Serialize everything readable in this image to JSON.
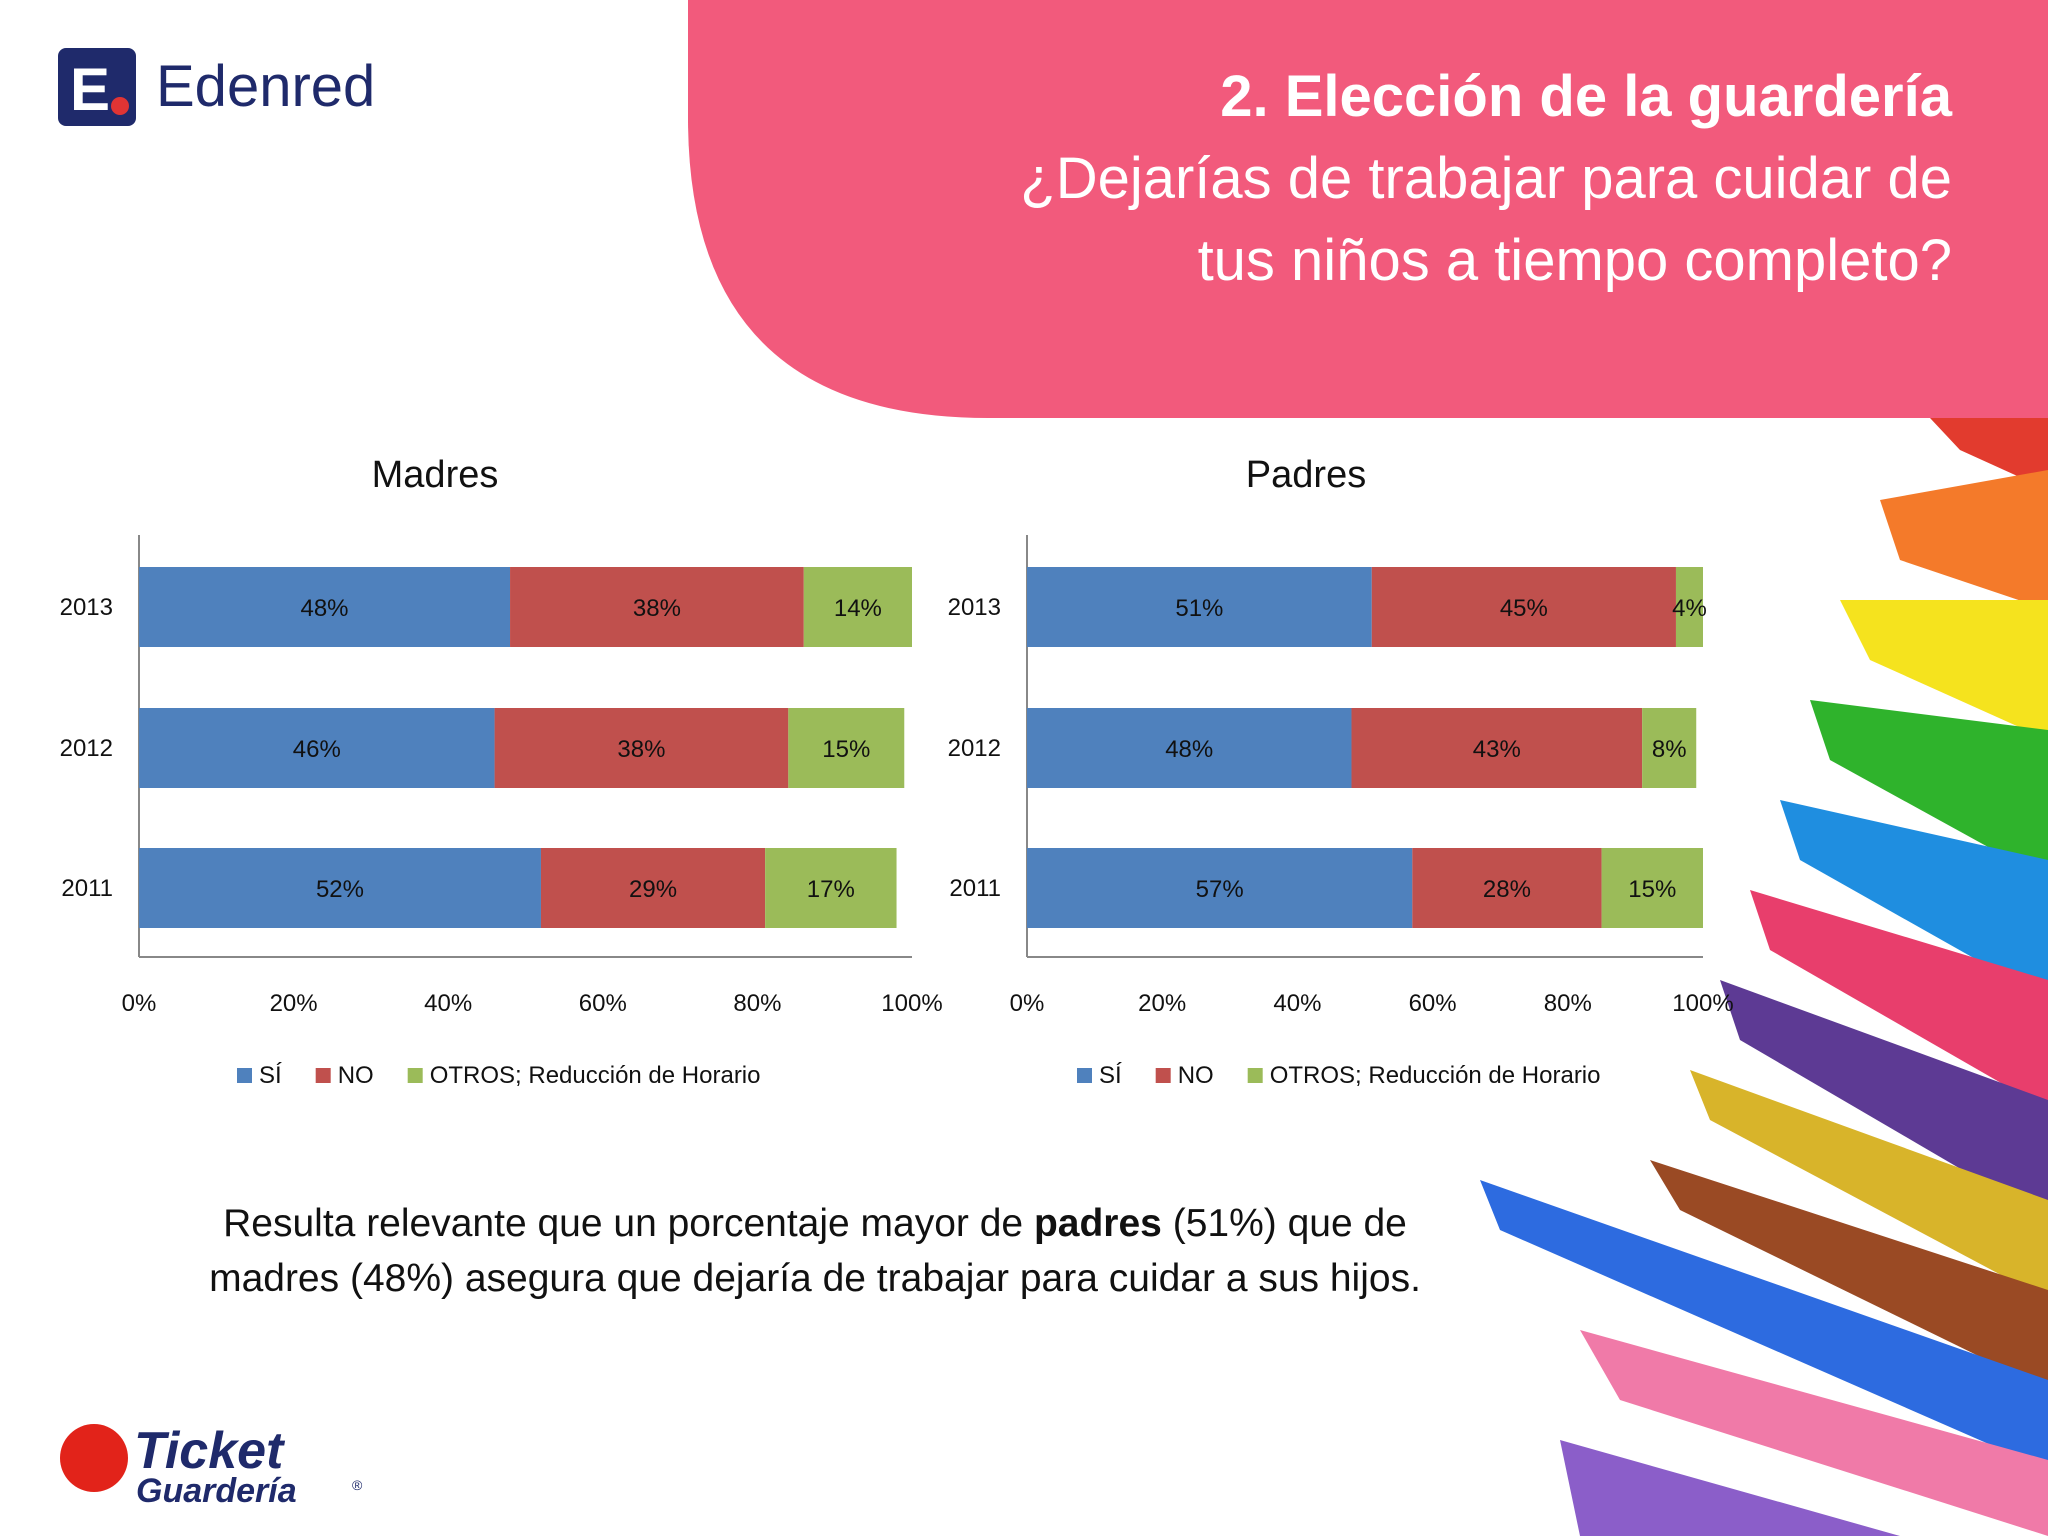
{
  "brand": {
    "name": "Edenred",
    "bottom_logo_line1": "Ticket",
    "bottom_logo_line2": "Guardería",
    "bottom_logo_mark": "®"
  },
  "header": {
    "title": "2. Elección de la guardería",
    "subtitle_line1": "¿Dejarías de trabajar para cuidar de",
    "subtitle_line2": "tus niños a tiempo completo?",
    "accent_color": "#f25a7c"
  },
  "summary": {
    "before": "Resulta relevante que un porcentaje mayor de ",
    "bold": "padres",
    "after": " (51%) que de madres (48%) asegura que dejaría de trabajar para cuidar a sus hijos."
  },
  "chart_data": [
    {
      "type": "bar",
      "orientation": "horizontal",
      "stacked": true,
      "title": "Madres",
      "categories": [
        "2013",
        "2012",
        "2011"
      ],
      "series": [
        {
          "name": "SÍ",
          "color": "#4f81bd",
          "values": [
            48,
            46,
            52
          ]
        },
        {
          "name": "NO",
          "color": "#c0504d",
          "values": [
            38,
            38,
            29
          ]
        },
        {
          "name": "OTROS; Reducción de Horario",
          "color": "#9bbb59",
          "values": [
            14,
            15,
            17
          ]
        }
      ],
      "x_ticks": [
        "0%",
        "20%",
        "40%",
        "60%",
        "80%",
        "100%"
      ],
      "xlim": [
        0,
        100
      ],
      "legend": "bottom"
    },
    {
      "type": "bar",
      "orientation": "horizontal",
      "stacked": true,
      "title": "Padres",
      "categories": [
        "2013",
        "2012",
        "2011"
      ],
      "series": [
        {
          "name": "SÍ",
          "color": "#4f81bd",
          "values": [
            51,
            48,
            57
          ]
        },
        {
          "name": "NO",
          "color": "#c0504d",
          "values": [
            45,
            43,
            28
          ]
        },
        {
          "name": "OTROS; Reducción de Horario",
          "color": "#9bbb59",
          "values": [
            4,
            8,
            15
          ]
        }
      ],
      "x_ticks": [
        "0%",
        "20%",
        "40%",
        "60%",
        "80%",
        "100%"
      ],
      "xlim": [
        0,
        100
      ],
      "legend": "bottom"
    }
  ]
}
